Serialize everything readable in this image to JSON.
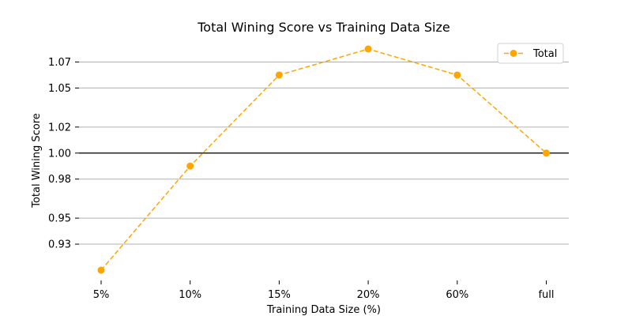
{
  "chart_data": {
    "type": "line",
    "title": "Total Wining Score vs Training Data Size",
    "xlabel": "Training Data Size (%)",
    "ylabel": "Total Wining Score",
    "categories": [
      "5%",
      "10%",
      "15%",
      "20%",
      "60%",
      "full"
    ],
    "series": [
      {
        "name": "Total",
        "values": [
          0.91,
          0.99,
          1.06,
          1.08,
          1.06,
          1.0
        ],
        "color": "#ffa500",
        "line_style": "dashed",
        "marker": "circle"
      }
    ],
    "yticks": [
      0.93,
      0.95,
      0.98,
      1.0,
      1.02,
      1.05,
      1.07
    ],
    "ytick_labels": [
      "0.93",
      "0.95",
      "0.98",
      "1.00",
      "1.02",
      "1.05",
      "1.07"
    ],
    "ylim": [
      0.9,
      1.08
    ],
    "reference_line": {
      "y": 1.0,
      "color": "#000000"
    },
    "grid": "horizontal",
    "gridline_color": "#b0b0b0",
    "legend_position": "top-right"
  }
}
